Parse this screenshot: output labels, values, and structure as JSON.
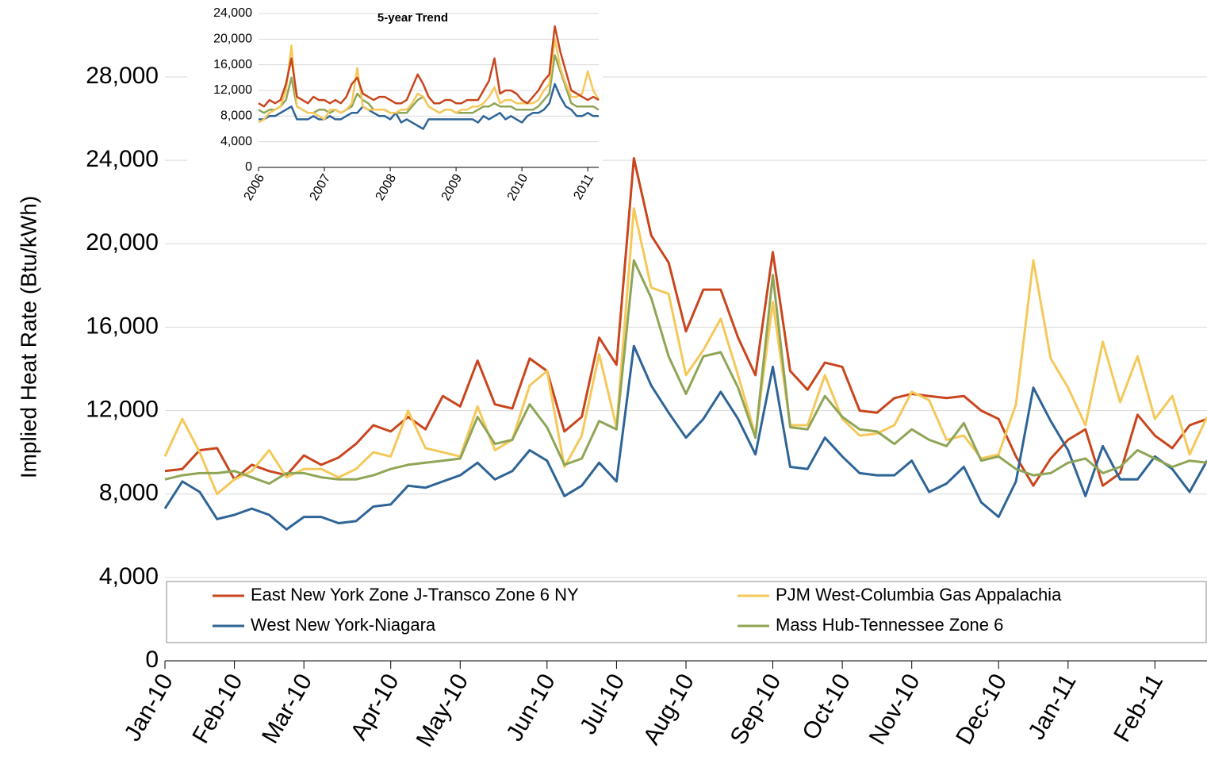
{
  "chart_data": [
    {
      "type": "line",
      "ylabel": "Implied Heat Rate (Btu/kWh)",
      "legend": "lower",
      "grid": true,
      "categories": [
        "Jan-10",
        null,
        null,
        null,
        "Feb-10",
        null,
        null,
        null,
        "Mar-10",
        null,
        null,
        null,
        null,
        "Apr-10",
        null,
        null,
        null,
        "May-10",
        null,
        null,
        null,
        null,
        "Jun-10",
        null,
        null,
        null,
        "Jul-10",
        null,
        null,
        null,
        "Aug-10",
        null,
        null,
        null,
        null,
        "Sep-10",
        null,
        null,
        null,
        "Oct-10",
        null,
        null,
        null,
        "Nov-10",
        null,
        null,
        null,
        null,
        "Dec-10",
        null,
        null,
        null,
        "Jan-11",
        null,
        null,
        null,
        null,
        "Feb-11",
        null,
        null,
        null
      ],
      "ylim": [
        0,
        28000
      ],
      "yticks": [
        0,
        {
          "value": 4000,
          "label": "4,000"
        },
        {
          "value": 8000,
          "label": "8,000"
        },
        {
          "value": 12000,
          "label": "12,000"
        },
        {
          "value": 16000,
          "label": "16,000"
        },
        {
          "value": 20000,
          "label": "20,000"
        },
        {
          "value": 24000,
          "label": "24,000"
        },
        {
          "value": 28000,
          "label": "28,000"
        }
      ],
      "series": [
        {
          "name": "East New York Zone J-Transco Zone 6 NY",
          "color": "#c8461e",
          "values": [
            9100,
            9200,
            10100,
            10200,
            8700,
            9400,
            9100,
            8900,
            9850,
            9400,
            9750,
            10400,
            11300,
            11000,
            11700,
            11100,
            12700,
            12200,
            14400,
            12300,
            12100,
            14500,
            13900,
            11000,
            11700,
            15500,
            14200,
            24100,
            20400,
            19100,
            15800,
            17800,
            17800,
            15500,
            13700,
            19600,
            13900,
            13000,
            14300,
            14100,
            12000,
            11900,
            12600,
            12800,
            12700,
            12600,
            12700,
            12000,
            11600,
            9800,
            8400,
            9700,
            10600,
            11100,
            8400,
            9000,
            11800,
            10800,
            10200,
            11300,
            11600
          ]
        },
        {
          "name": "West New York-Niagara",
          "color": "#2e6496",
          "values": [
            7300,
            8600,
            8100,
            6800,
            7000,
            7300,
            7000,
            6300,
            6900,
            6900,
            6600,
            6700,
            7400,
            7500,
            8400,
            8300,
            8600,
            8900,
            9500,
            8700,
            9100,
            10100,
            9600,
            7900,
            8400,
            9500,
            8600,
            15100,
            13200,
            11900,
            10700,
            11600,
            12900,
            11600,
            9900,
            14100,
            9300,
            9200,
            10700,
            9800,
            9000,
            8900,
            8900,
            9600,
            8100,
            8500,
            9300,
            7600,
            6900,
            8600,
            13100,
            11500,
            10100,
            7900,
            10300,
            8700,
            8700,
            9800,
            9200,
            8100,
            9600
          ]
        },
        {
          "name": "PJM West-Columbia Gas Appalachia",
          "color": "#f5c85a",
          "values": [
            9800,
            11600,
            10000,
            8000,
            8700,
            9100,
            10100,
            8800,
            9200,
            9200,
            8800,
            9200,
            10000,
            9800,
            12000,
            10200,
            10000,
            9800,
            12200,
            10100,
            10600,
            13200,
            13900,
            9300,
            10800,
            14700,
            11200,
            21700,
            17900,
            17600,
            13700,
            14900,
            16400,
            13700,
            10800,
            17200,
            11300,
            11300,
            13700,
            11600,
            10800,
            10900,
            11300,
            12900,
            12500,
            10600,
            10800,
            9700,
            9900,
            12300,
            19200,
            14500,
            13100,
            11300,
            15300,
            12400,
            14600,
            11600,
            12700,
            9900,
            11700
          ]
        },
        {
          "name": "Mass Hub-Tennessee Zone 6",
          "color": "#8fa556",
          "values": [
            8700,
            8900,
            9000,
            9000,
            9100,
            8800,
            8500,
            9000,
            9000,
            8800,
            8700,
            8700,
            8900,
            9200,
            9400,
            9500,
            9600,
            9700,
            11700,
            10400,
            10600,
            12300,
            11200,
            9400,
            9700,
            11500,
            11100,
            19200,
            17400,
            14600,
            12800,
            14600,
            14800,
            13100,
            10700,
            18500,
            11200,
            11100,
            12700,
            11700,
            11100,
            11000,
            10400,
            11100,
            10600,
            10300,
            11400,
            9600,
            9800,
            9200,
            8900,
            9000,
            9500,
            9700,
            9000,
            9300,
            10100,
            9700,
            9300,
            9600,
            9500
          ]
        }
      ]
    },
    {
      "type": "line",
      "title": "5-year Trend",
      "grid": true,
      "categories": [
        "2006",
        null,
        null,
        null,
        null,
        null,
        null,
        null,
        null,
        null,
        null,
        null,
        "2007",
        null,
        null,
        null,
        null,
        null,
        null,
        null,
        null,
        null,
        null,
        null,
        "2008",
        null,
        null,
        null,
        null,
        null,
        null,
        null,
        null,
        null,
        null,
        null,
        "2009",
        null,
        null,
        null,
        null,
        null,
        null,
        null,
        null,
        null,
        null,
        null,
        "2010",
        null,
        null,
        null,
        null,
        null,
        null,
        null,
        null,
        null,
        null,
        null,
        "2011",
        null,
        null
      ],
      "ylim": [
        0,
        24000
      ],
      "yticks": [
        0,
        {
          "value": 4000,
          "label": "4,000"
        },
        {
          "value": 8000,
          "label": "8,000"
        },
        {
          "value": 12000,
          "label": "12,000"
        },
        {
          "value": 16000,
          "label": "16,000"
        },
        {
          "value": 20000,
          "label": "20,000"
        },
        {
          "value": 24000,
          "label": "24,000"
        }
      ],
      "series": [
        {
          "color": "#2e6496",
          "values": [
            7500,
            7500,
            8000,
            8000,
            8500,
            9000,
            9500,
            7500,
            7500,
            7500,
            8000,
            7500,
            7500,
            8000,
            7500,
            7500,
            8000,
            8500,
            8500,
            9500,
            9000,
            8500,
            8000,
            8000,
            7500,
            8500,
            7000,
            7500,
            7000,
            6500,
            6000,
            7500,
            7500,
            7500,
            7500,
            7500,
            7500,
            7500,
            7500,
            7500,
            7000,
            8000,
            7500,
            8000,
            8500,
            7500,
            8000,
            7500,
            7000,
            8000,
            8500,
            8500,
            9000,
            10000,
            13000,
            11000,
            9500,
            9000,
            8000,
            8000,
            8500,
            8000,
            8000
          ]
        },
        {
          "color": "#8fa556",
          "values": [
            9000,
            8500,
            9000,
            9000,
            9500,
            10500,
            14000,
            9500,
            9000,
            8500,
            8500,
            9000,
            9000,
            8500,
            9000,
            8500,
            9000,
            9500,
            11500,
            10500,
            10000,
            9000,
            9000,
            9000,
            8500,
            8500,
            8500,
            8500,
            9500,
            10500,
            11000,
            9500,
            9000,
            8500,
            9000,
            9000,
            8500,
            8500,
            8500,
            8500,
            9000,
            9500,
            9500,
            10000,
            9500,
            9500,
            9500,
            9000,
            9000,
            9000,
            9000,
            9500,
            10500,
            11500,
            17500,
            15000,
            12500,
            10000,
            9500,
            9500,
            9500,
            9500,
            9000
          ]
        },
        {
          "color": "#f5c85a",
          "values": [
            7000,
            7500,
            8500,
            9000,
            9500,
            12000,
            19000,
            9500,
            9000,
            8500,
            8500,
            8000,
            7500,
            9000,
            9000,
            8500,
            9000,
            10000,
            15500,
            9500,
            9000,
            9000,
            9000,
            9000,
            8500,
            8500,
            9000,
            9000,
            10000,
            11500,
            11000,
            9500,
            9000,
            8500,
            9000,
            9000,
            8500,
            9000,
            9000,
            9500,
            9500,
            10000,
            11000,
            12500,
            10000,
            10500,
            10500,
            10000,
            10000,
            10000,
            10000,
            10500,
            12000,
            13000,
            20000,
            15500,
            13000,
            11000,
            11000,
            11500,
            15000,
            12000,
            10500
          ]
        },
        {
          "color": "#c8461e",
          "values": [
            10000,
            9500,
            10500,
            10000,
            10500,
            13000,
            17000,
            11000,
            10500,
            10000,
            11000,
            10500,
            10500,
            10000,
            10500,
            10000,
            11000,
            13000,
            14000,
            11500,
            11000,
            10500,
            11000,
            11000,
            10500,
            10000,
            10000,
            10500,
            12500,
            14500,
            13000,
            11000,
            10000,
            10000,
            10500,
            10500,
            10000,
            10000,
            10500,
            10500,
            10500,
            12000,
            13500,
            17000,
            11500,
            12000,
            12000,
            11500,
            10500,
            10000,
            11000,
            12000,
            13500,
            14500,
            22000,
            18000,
            15000,
            12000,
            11500,
            11000,
            10500,
            11000,
            10500
          ]
        }
      ]
    }
  ]
}
